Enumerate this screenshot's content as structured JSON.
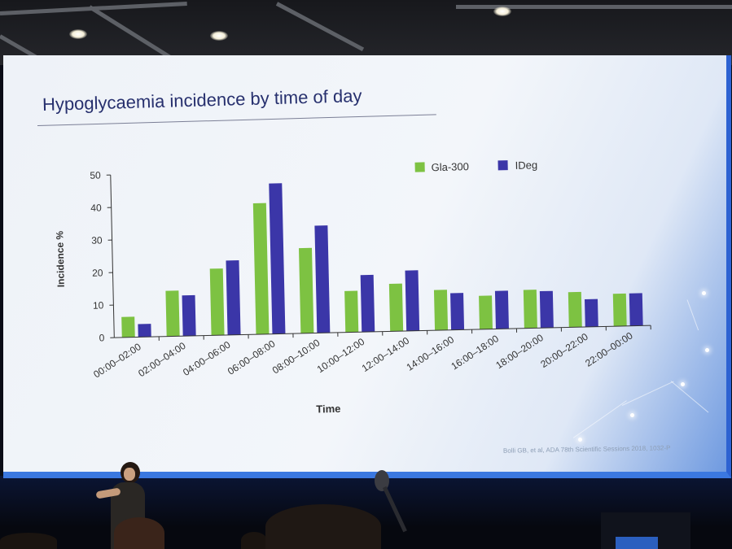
{
  "slide": {
    "title": "Hypoglycaemia incidence by time of day",
    "citation": "Bolli GB, et al, ADA 78th Scientific Sessions 2018, 1032-P"
  },
  "colors": {
    "gla300": "#7dc242",
    "ideg": "#3b36a8",
    "title": "#27306e",
    "axis": "#333333"
  },
  "chart_data": {
    "type": "bar",
    "xlabel": "Time",
    "ylabel": "Incidence %",
    "ylim": [
      0,
      50
    ],
    "yticks": [
      0,
      10,
      20,
      30,
      40,
      50
    ],
    "legend_position": "top-right",
    "grid": false,
    "categories": [
      "00:00–02:00",
      "02:00–04:00",
      "04:00–06:00",
      "06:00–08:00",
      "08:00–10:00",
      "10:00–12:00",
      "12:00–14:00",
      "14:00–16:00",
      "16:00–18:00",
      "18:00–20:00",
      "20:00–22:00",
      "22:00–00:00"
    ],
    "series": [
      {
        "name": "Gla-300",
        "color": "#7dc242",
        "values": [
          6.3,
          14.0,
          20.5,
          40.3,
          26.2,
          12.7,
          14.6,
          12.4,
          10.3,
          11.8,
          10.8,
          10.0
        ]
      },
      {
        "name": "IDeg",
        "color": "#3b36a8",
        "values": [
          4.0,
          12.5,
          22.9,
          46.3,
          33.0,
          17.5,
          18.6,
          11.3,
          11.7,
          11.3,
          8.5,
          10.0
        ]
      }
    ]
  }
}
